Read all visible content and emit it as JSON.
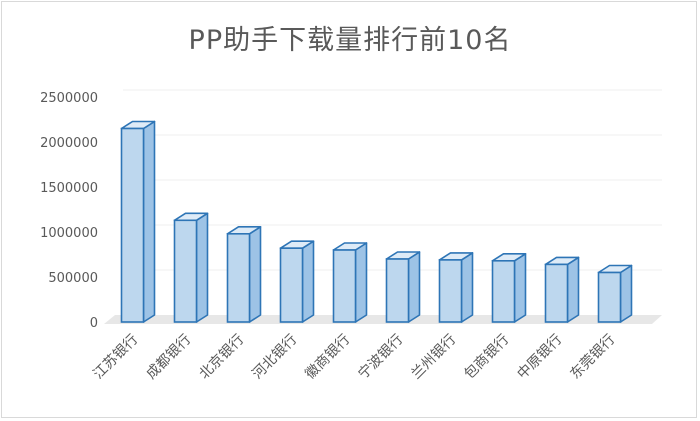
{
  "chart_data": {
    "type": "bar",
    "title": "PP助手下载量排行前10名",
    "categories": [
      "江苏银行",
      "成都银行",
      "北京银行",
      "河北银行",
      "徽商银行",
      "宁波银行",
      "兰州银行",
      "包商银行",
      "中原银行",
      "东莞银行"
    ],
    "values": [
      2150000,
      1130000,
      980000,
      820000,
      800000,
      700000,
      690000,
      680000,
      640000,
      550000
    ],
    "yticks": [
      "0",
      "500000",
      "1000000",
      "1500000",
      "2000000",
      "2500000"
    ],
    "ylim": [
      0,
      2500000
    ],
    "grid": true,
    "legend": "none",
    "colors": {
      "bar_fill": "#bdd7ee",
      "bar_side": "#9dc3e6",
      "bar_top": "#deebf7",
      "bar_edge": "#2e75b6",
      "grid": "#efefef",
      "floor": "#e7e7e7",
      "text": "#595959"
    }
  }
}
